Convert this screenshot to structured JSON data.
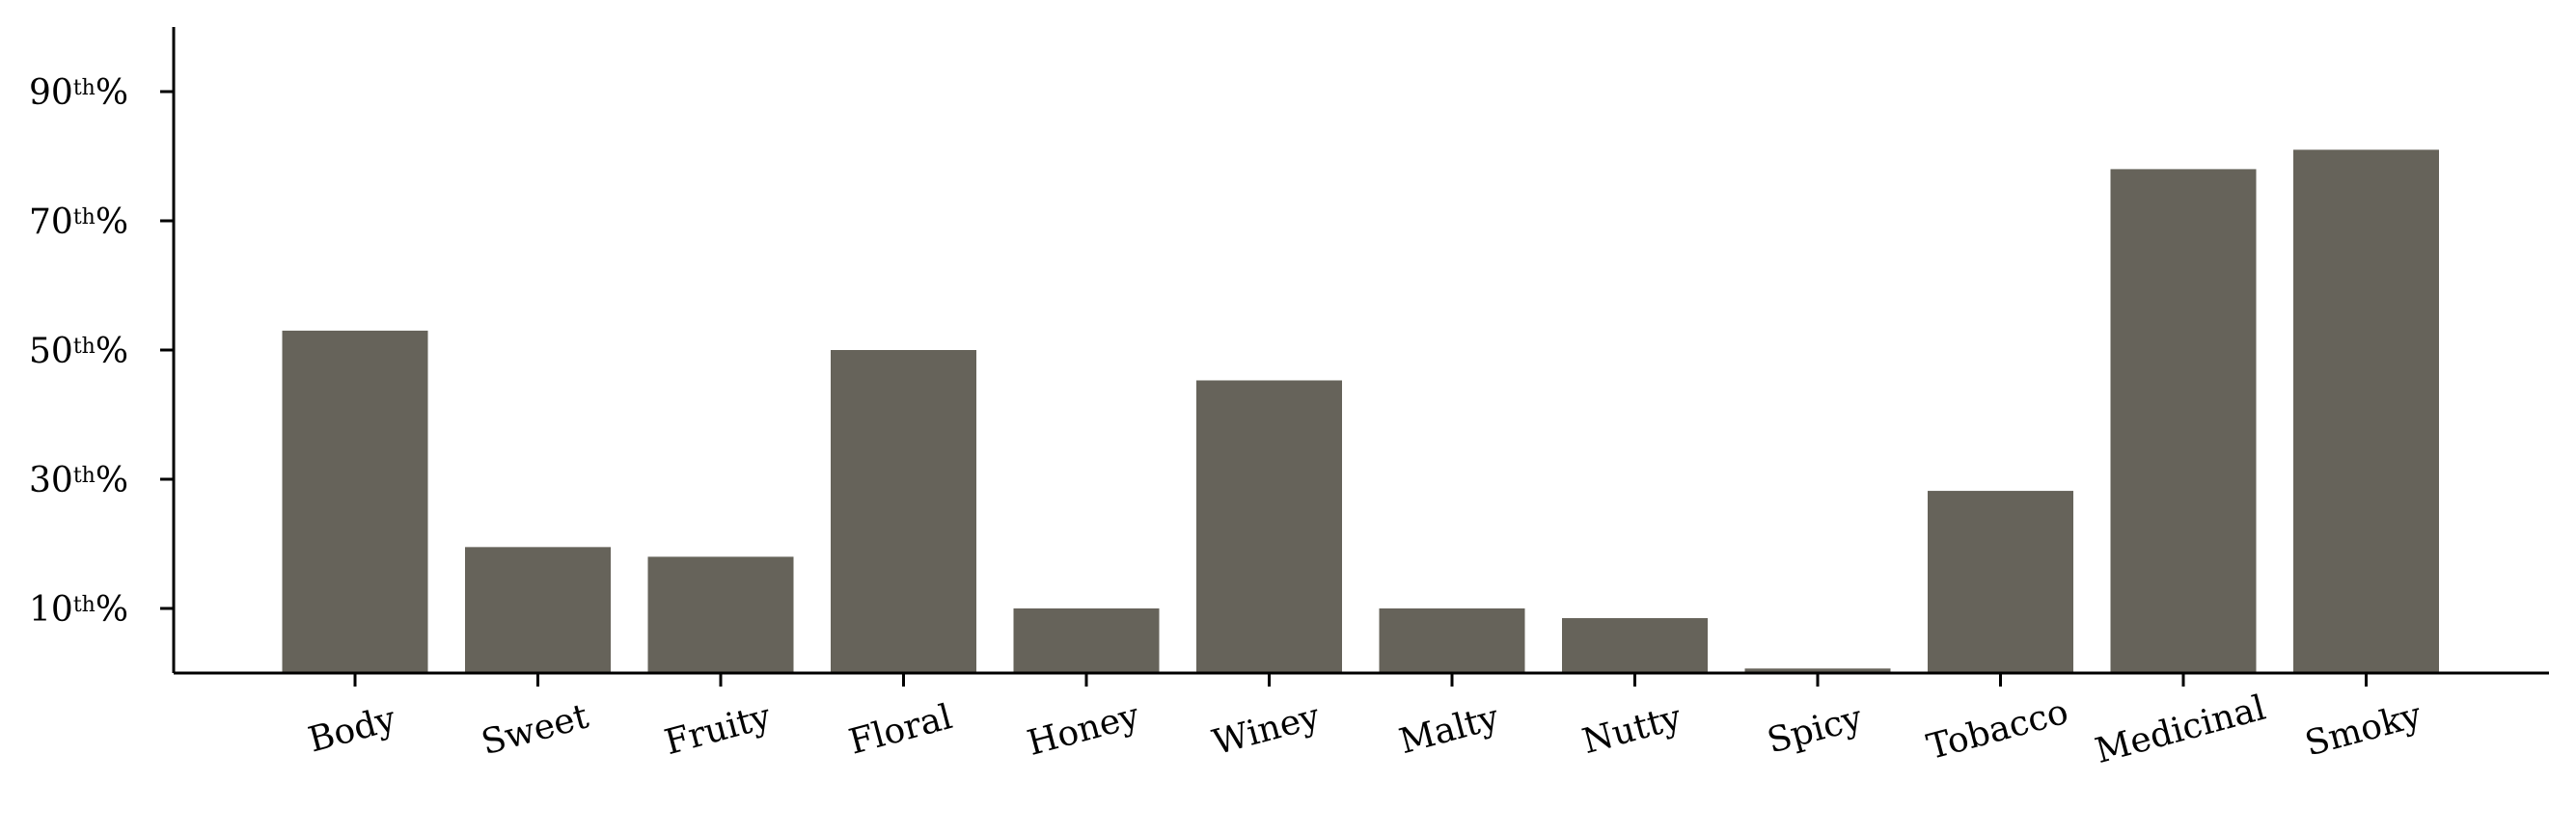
{
  "chart_data": {
    "type": "bar",
    "title": "",
    "xlabel": "",
    "ylabel": "",
    "categories": [
      "Body",
      "Sweet",
      "Fruity",
      "Floral",
      "Honey",
      "Winey",
      "Malty",
      "Nutty",
      "Spicy",
      "Tobacco",
      "Medicinal",
      "Smoky"
    ],
    "values": [
      53,
      19.5,
      18,
      50,
      10,
      45.3,
      10,
      8.5,
      0.7,
      28.2,
      78,
      81
    ],
    "ylim": [
      0,
      100
    ],
    "yticks": [
      {
        "value": 10,
        "num": "10",
        "sup": "th",
        "pct": "%"
      },
      {
        "value": 30,
        "num": "30",
        "sup": "th",
        "pct": "%"
      },
      {
        "value": 50,
        "num": "50",
        "sup": "th",
        "pct": "%"
      },
      {
        "value": 70,
        "num": "70",
        "sup": "th",
        "pct": "%"
      },
      {
        "value": 90,
        "num": "90",
        "sup": "th",
        "pct": "%"
      }
    ],
    "bar_color": "#66635a",
    "grid": false,
    "legend": "none"
  }
}
